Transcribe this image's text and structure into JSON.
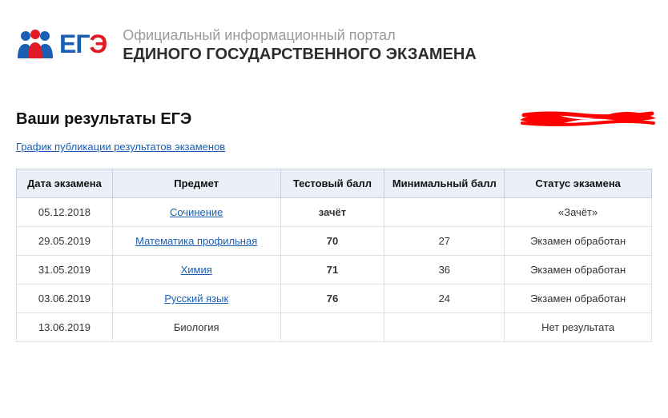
{
  "header": {
    "logo_text": "ЕГЭ",
    "subtitle": "Официальный информационный портал",
    "title": "ЕДИНОГО ГОСУДАРСТВЕННОГО ЭКЗАМЕНА",
    "logo_colors": {
      "people_left": "#1a5fb4",
      "people_mid": "#e01b24",
      "people_right": "#1a5fb4"
    }
  },
  "results": {
    "section_title": "Ваши результаты ЕГЭ",
    "schedule_link_label": "График публикации результатов экзаменов",
    "columns": [
      "Дата экзамена",
      "Предмет",
      "Тестовый балл",
      "Минимальный балл",
      "Статус экзамена"
    ],
    "rows": [
      {
        "date": "05.12.2018",
        "subject": "Сочинение",
        "subject_is_link": true,
        "score": "зачёт",
        "min": "",
        "status": "«Зачёт»"
      },
      {
        "date": "29.05.2019",
        "subject": "Математика профильная",
        "subject_is_link": true,
        "score": "70",
        "min": "27",
        "status": "Экзамен обработан"
      },
      {
        "date": "31.05.2019",
        "subject": "Химия",
        "subject_is_link": true,
        "score": "71",
        "min": "36",
        "status": "Экзамен обработан"
      },
      {
        "date": "03.06.2019",
        "subject": "Русский язык",
        "subject_is_link": true,
        "score": "76",
        "min": "24",
        "status": "Экзамен обработан"
      },
      {
        "date": "13.06.2019",
        "subject": "Биология",
        "subject_is_link": false,
        "score": "",
        "min": "",
        "status": "Нет результата"
      }
    ],
    "table_style": {
      "header_bg": "#ebeff7",
      "header_border": "#c7cfe0",
      "cell_border": "#e0e0e0",
      "link_color": "#1a5fb4",
      "score_color": "#2e8a2e",
      "font_size_pt": 10
    }
  },
  "annotation": {
    "red_scribble_color": "#ff0000"
  }
}
